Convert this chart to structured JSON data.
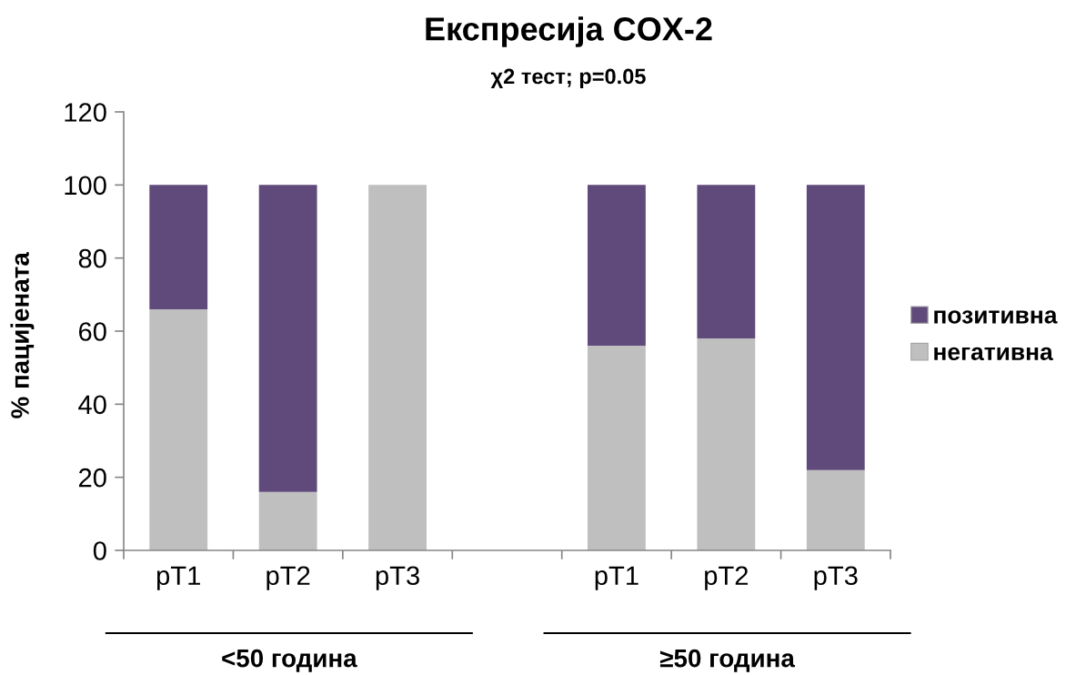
{
  "chart_data": {
    "type": "bar",
    "title": "Експресија COX-2",
    "subtitle": "χ2 тест; p=0.05",
    "ylabel": "% пацијената",
    "categories": [
      "pT1",
      "pT2",
      "pT3",
      null,
      "pT1",
      "pT2",
      "pT3"
    ],
    "stacked": true,
    "series": [
      {
        "name": "негативна",
        "color": "#bfbfbf",
        "values": [
          66,
          16,
          100,
          null,
          56,
          58,
          22
        ]
      },
      {
        "name": "позитивна",
        "color": "#604a7b",
        "values": [
          34,
          84,
          0,
          null,
          44,
          42,
          78
        ]
      }
    ],
    "ylim": [
      0,
      120
    ],
    "yticks": [
      0,
      20,
      40,
      60,
      80,
      100,
      120
    ],
    "legend": "right",
    "annotations": [
      "<50 година",
      "≥50 година"
    ]
  }
}
